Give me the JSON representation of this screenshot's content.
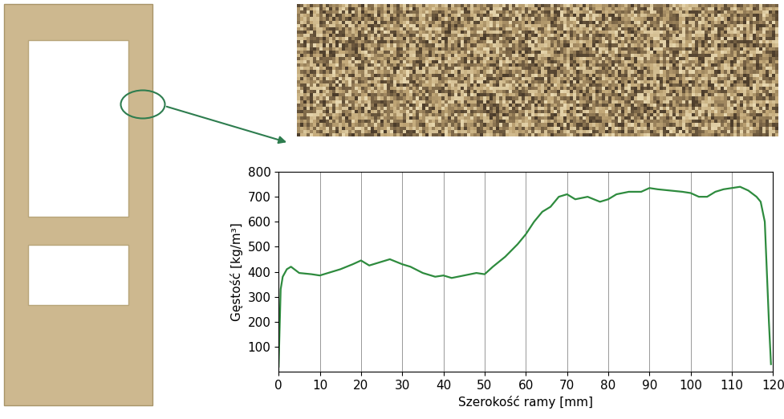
{
  "chart_data": {
    "type": "line",
    "x_label": "Szerokość ramy [mm]",
    "y_label": "Gęstość [kg/m³]",
    "x": [
      0,
      0.5,
      1,
      2,
      3,
      5,
      8,
      10,
      12,
      15,
      18,
      20,
      22,
      25,
      27,
      30,
      32,
      35,
      38,
      40,
      42,
      45,
      48,
      50,
      52,
      55,
      58,
      60,
      62,
      64,
      66,
      68,
      70,
      72,
      75,
      78,
      80,
      82,
      85,
      88,
      90,
      92,
      95,
      98,
      100,
      102,
      104,
      106,
      108,
      110,
      112,
      114,
      116,
      117,
      118,
      118.5,
      119,
      119.5
    ],
    "values": [
      20,
      330,
      380,
      410,
      420,
      395,
      390,
      385,
      395,
      410,
      430,
      445,
      425,
      440,
      450,
      430,
      420,
      395,
      380,
      385,
      375,
      385,
      395,
      390,
      420,
      460,
      510,
      550,
      600,
      640,
      660,
      700,
      710,
      690,
      700,
      680,
      690,
      710,
      720,
      720,
      735,
      730,
      725,
      720,
      715,
      700,
      700,
      720,
      730,
      735,
      740,
      725,
      700,
      680,
      600,
      400,
      200,
      30
    ],
    "color": "#2e8b3e",
    "xlim": [
      0,
      120
    ],
    "xticks": [
      0,
      10,
      20,
      30,
      40,
      50,
      60,
      70,
      80,
      90,
      100,
      110,
      120
    ],
    "ylim": [
      0,
      800
    ],
    "yticks": [
      100,
      200,
      300,
      400,
      500,
      600,
      700,
      800
    ],
    "grid": "x"
  }
}
